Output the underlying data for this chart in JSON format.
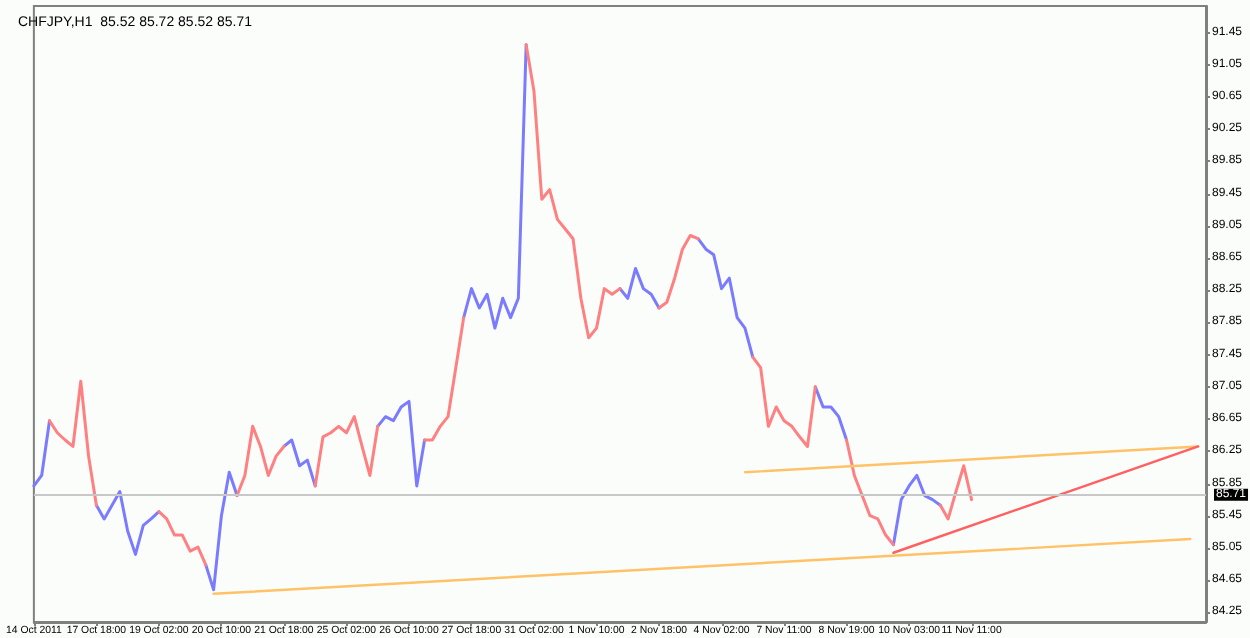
{
  "chart_data": {
    "type": "line",
    "title": "CHFJPY,H1  85.52 85.72 85.52 85.71",
    "categories": [
      "14 Oct 2011",
      null,
      null,
      null,
      null,
      null,
      null,
      null,
      "17 Oct 18:00",
      null,
      null,
      null,
      null,
      null,
      null,
      null,
      "19 Oct 02:00",
      null,
      null,
      null,
      null,
      null,
      null,
      null,
      "20 Oct 10:00",
      null,
      null,
      null,
      null,
      null,
      null,
      null,
      "21 Oct 18:00",
      null,
      null,
      null,
      null,
      null,
      null,
      null,
      "25 Oct 02:00",
      null,
      null,
      null,
      null,
      null,
      null,
      null,
      "26 Oct 10:00",
      null,
      null,
      null,
      null,
      null,
      null,
      null,
      "27 Oct 18:00",
      null,
      null,
      null,
      null,
      null,
      null,
      null,
      "31 Oct 02:00",
      null,
      null,
      null,
      null,
      null,
      null,
      null,
      "1 Nov 10:00",
      null,
      null,
      null,
      null,
      null,
      null,
      null,
      "2 Nov 18:00",
      null,
      null,
      null,
      null,
      null,
      null,
      null,
      "4 Nov 02:00",
      null,
      null,
      null,
      null,
      null,
      null,
      null,
      "7 Nov 11:00",
      null,
      null,
      null,
      null,
      null,
      null,
      null,
      "8 Nov 19:00",
      null,
      null,
      null,
      null,
      null,
      null,
      null,
      "10 Nov 03:00",
      null,
      null,
      null,
      null,
      null,
      null,
      null,
      "11 Nov 11:00",
      null,
      null,
      null,
      null,
      null,
      null,
      null,
      null,
      null,
      null,
      null,
      null,
      null,
      null,
      null,
      null,
      null,
      null,
      null,
      null,
      null,
      null,
      null,
      null,
      null,
      null,
      null,
      null,
      null,
      null
    ],
    "series": [
      {
        "color": "#7b7bff",
        "values": [
          85.82,
          85.95,
          86.63,
          null,
          null,
          null,
          null,
          null,
          85.58,
          85.41,
          85.58,
          85.75,
          85.26,
          84.97,
          85.33,
          85.41,
          85.5,
          null,
          null,
          null,
          null,
          null,
          84.84,
          84.53,
          85.45,
          85.99,
          85.7,
          null,
          null,
          null,
          null,
          null,
          86.31,
          86.39,
          86.07,
          86.14,
          85.82,
          null,
          null,
          null,
          null,
          null,
          null,
          null,
          86.56,
          86.68,
          86.63,
          86.8,
          86.87,
          85.82,
          86.39,
          null,
          null,
          null,
          null,
          87.91,
          88.27,
          88.03,
          88.2,
          87.78,
          88.15,
          87.91,
          88.15,
          91.3,
          null,
          null,
          null,
          null,
          null,
          null,
          null,
          null,
          null,
          null,
          null,
          88.27,
          88.15,
          88.52,
          88.27,
          88.2,
          88.03,
          null,
          null,
          null,
          null,
          88.89,
          88.76,
          88.69,
          88.27,
          88.4,
          87.91,
          87.78,
          87.42,
          null,
          null,
          null,
          null,
          null,
          null,
          null,
          87.05,
          86.8,
          86.8,
          86.68,
          86.39,
          null,
          null,
          null,
          null,
          null,
          85.09,
          85.65,
          85.82,
          85.95,
          85.7,
          85.65,
          85.58,
          null,
          null,
          null,
          null,
          null,
          null,
          null,
          null,
          null,
          null,
          null,
          null,
          null,
          null,
          null,
          null,
          null,
          null,
          null,
          null,
          null,
          null,
          null,
          null,
          null,
          null,
          null,
          null,
          null,
          null,
          null,
          null,
          null,
          null
        ]
      },
      {
        "color": "#ff8080",
        "values": [
          null,
          null,
          86.63,
          86.48,
          86.39,
          86.31,
          87.12,
          86.19,
          85.58,
          null,
          null,
          null,
          null,
          null,
          null,
          null,
          85.5,
          85.41,
          85.21,
          85.21,
          85.01,
          85.06,
          84.84,
          null,
          null,
          null,
          85.7,
          85.95,
          86.56,
          86.31,
          85.95,
          86.19,
          86.31,
          null,
          null,
          null,
          85.82,
          86.43,
          86.48,
          86.56,
          86.48,
          86.68,
          86.31,
          85.95,
          86.56,
          null,
          null,
          null,
          null,
          null,
          86.39,
          86.39,
          86.56,
          86.68,
          87.29,
          87.91,
          null,
          null,
          null,
          null,
          null,
          null,
          null,
          91.3,
          90.72,
          89.38,
          89.5,
          89.13,
          89.01,
          88.89,
          88.15,
          87.66,
          87.78,
          88.27,
          88.2,
          88.27,
          null,
          null,
          null,
          null,
          88.03,
          88.1,
          88.4,
          88.76,
          88.93,
          88.89,
          null,
          null,
          null,
          null,
          null,
          null,
          87.42,
          87.29,
          86.56,
          86.8,
          86.63,
          86.56,
          86.43,
          86.31,
          87.05,
          null,
          null,
          null,
          86.39,
          85.95,
          85.7,
          85.45,
          85.41,
          85.21,
          85.09,
          null,
          null,
          null,
          null,
          null,
          85.58,
          85.41,
          85.75,
          86.07,
          85.65,
          null,
          null,
          null,
          null,
          null,
          null,
          null,
          null,
          null,
          null,
          null,
          null,
          null,
          null,
          null,
          null,
          null,
          null,
          null,
          null,
          null,
          null,
          null,
          null,
          null,
          null,
          null,
          null,
          null,
          null
        ]
      },
      {
        "color": "#ffc266",
        "values": [
          null,
          null,
          null,
          null,
          null,
          null,
          null,
          null,
          null,
          null,
          null,
          null,
          null,
          null,
          null,
          null,
          null,
          null,
          null,
          null,
          null,
          null,
          null,
          null,
          null,
          null,
          null,
          null,
          null,
          null,
          null,
          null,
          null,
          null,
          null,
          null,
          null,
          null,
          null,
          null,
          null,
          null,
          null,
          null,
          null,
          null,
          null,
          null,
          null,
          null,
          null,
          null,
          null,
          null,
          null,
          null,
          null,
          null,
          null,
          null,
          null,
          null,
          null,
          null,
          null,
          null,
          null,
          null,
          null,
          null,
          null,
          null,
          null,
          null,
          null,
          null,
          null,
          null,
          null,
          null,
          null,
          null,
          null,
          null,
          null,
          null,
          null,
          null,
          null,
          null,
          null,
          85.99,
          null,
          null,
          null,
          null,
          null,
          null,
          null,
          null,
          null,
          null,
          null,
          null,
          null,
          null,
          null,
          null,
          null,
          null,
          null,
          null,
          null,
          null,
          null,
          null,
          null,
          null,
          null,
          null,
          null,
          null,
          null,
          null,
          null,
          null,
          null,
          null,
          null,
          null,
          null,
          null,
          null,
          null,
          null,
          null,
          null,
          null,
          null,
          null,
          null,
          null,
          null,
          null,
          null,
          null,
          null,
          null,
          null,
          86.31,
          null
        ]
      },
      {
        "color": "#ffc266",
        "values": [
          null,
          null,
          null,
          null,
          null,
          null,
          null,
          null,
          null,
          null,
          null,
          null,
          null,
          null,
          null,
          null,
          null,
          null,
          null,
          null,
          null,
          null,
          null,
          84.48,
          null,
          null,
          null,
          null,
          null,
          null,
          null,
          null,
          null,
          null,
          null,
          null,
          null,
          null,
          null,
          null,
          null,
          null,
          null,
          null,
          null,
          null,
          null,
          null,
          null,
          null,
          null,
          null,
          null,
          null,
          null,
          null,
          null,
          null,
          null,
          null,
          null,
          null,
          null,
          null,
          null,
          null,
          null,
          null,
          null,
          null,
          null,
          null,
          null,
          null,
          null,
          null,
          null,
          null,
          null,
          null,
          null,
          null,
          null,
          null,
          null,
          null,
          null,
          null,
          null,
          null,
          null,
          null,
          null,
          null,
          null,
          null,
          null,
          null,
          null,
          null,
          null,
          null,
          null,
          null,
          null,
          null,
          null,
          null,
          null,
          null,
          null,
          null,
          null,
          null,
          null,
          null,
          null,
          null,
          null,
          null,
          null,
          null,
          null,
          null,
          null,
          null,
          null,
          null,
          null,
          null,
          null,
          null,
          null,
          null,
          null,
          null,
          null,
          null,
          null,
          null,
          null,
          null,
          null,
          null,
          null,
          null,
          null,
          null,
          85.16,
          null,
          null
        ]
      },
      {
        "color": "#ff6060",
        "values": [
          null,
          null,
          null,
          null,
          null,
          null,
          null,
          null,
          null,
          null,
          null,
          null,
          null,
          null,
          null,
          null,
          null,
          null,
          null,
          null,
          null,
          null,
          null,
          null,
          null,
          null,
          null,
          null,
          null,
          null,
          null,
          null,
          null,
          null,
          null,
          null,
          null,
          null,
          null,
          null,
          null,
          null,
          null,
          null,
          null,
          null,
          null,
          null,
          null,
          null,
          null,
          null,
          null,
          null,
          null,
          null,
          null,
          null,
          null,
          null,
          null,
          null,
          null,
          null,
          null,
          null,
          null,
          null,
          null,
          null,
          null,
          null,
          null,
          null,
          null,
          null,
          null,
          null,
          null,
          null,
          null,
          null,
          null,
          null,
          null,
          null,
          null,
          null,
          null,
          null,
          null,
          null,
          null,
          null,
          null,
          null,
          null,
          null,
          null,
          null,
          null,
          null,
          null,
          null,
          null,
          null,
          null,
          null,
          null,
          null,
          84.99,
          null,
          null,
          null,
          null,
          null,
          null,
          null,
          null,
          null,
          null,
          null,
          null,
          null,
          null,
          null,
          null,
          null,
          null,
          null,
          null,
          null,
          null,
          null,
          null,
          null,
          null,
          null,
          null,
          null,
          null,
          null,
          null,
          null,
          null,
          null,
          null,
          null,
          null,
          86.31,
          null
        ]
      }
    ],
    "ylim": [
      84.13,
      91.78
    ],
    "yticks": [
      84.25,
      84.65,
      85.05,
      85.45,
      85.85,
      86.25,
      86.65,
      87.05,
      87.45,
      87.85,
      88.25,
      88.65,
      89.05,
      89.45,
      89.85,
      90.25,
      90.65,
      91.05,
      91.45
    ],
    "ref_lines": [
      {
        "axis": "y",
        "value": 85.71,
        "label": "85.71",
        "color": "#c8c8c8"
      }
    ],
    "grid": false,
    "legend": false,
    "marker": "none",
    "line_style": "solid"
  }
}
